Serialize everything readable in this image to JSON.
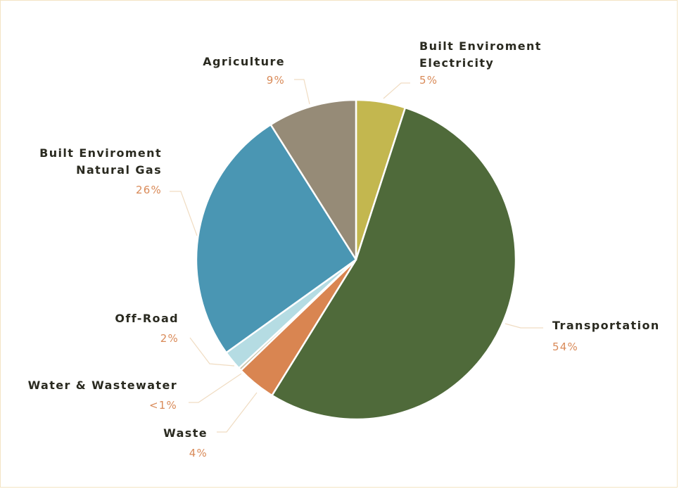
{
  "chart_data": {
    "type": "pie",
    "slices": [
      {
        "label_lines": [
          "Built Enviroment",
          "Electricity"
        ],
        "value": 5,
        "value_label": "5%",
        "color": "#c3b74f"
      },
      {
        "label_lines": [
          "Transportation"
        ],
        "value": 54,
        "value_label": "54%",
        "color": "#4f6a3a"
      },
      {
        "label_lines": [
          "Waste"
        ],
        "value": 4,
        "value_label": "4%",
        "color": "#d98551"
      },
      {
        "label_lines": [
          "Water & Wastewater"
        ],
        "value": 0.3,
        "value_label": "<1%",
        "color": "#c7c2a8"
      },
      {
        "label_lines": [
          "Off-Road"
        ],
        "value": 2,
        "value_label": "2%",
        "color": "#b5dce3"
      },
      {
        "label_lines": [
          "Built Enviroment",
          "Natural Gas"
        ],
        "value": 26,
        "value_label": "26%",
        "color": "#4a96b3"
      },
      {
        "label_lines": [
          "Agriculture"
        ],
        "value": 9,
        "value_label": "9%",
        "color": "#968b77"
      }
    ],
    "legend": "none",
    "leader_line_color": "#f0dcc2"
  }
}
